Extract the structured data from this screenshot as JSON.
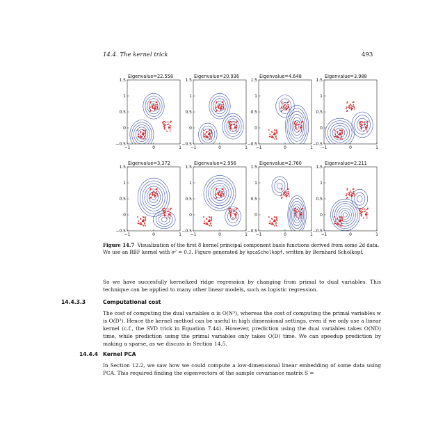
{
  "header": {
    "running_title": "14.4.  The kernel trick",
    "page_number": "493"
  },
  "figure": {
    "panels": [
      {
        "title": "Eigenvalue=22.558"
      },
      {
        "title": "Eigenvalue=20.936"
      },
      {
        "title": "Eigenvalue=4.648"
      },
      {
        "title": "Eigenvalue=3.988"
      },
      {
        "title": "Eigenvalue=3.372"
      },
      {
        "title": "Eigenvalue=2.956"
      },
      {
        "title": "Eigenvalue=2.760"
      },
      {
        "title": "Eigenvalue=2.211"
      }
    ],
    "y_ticks": [
      "1.5",
      "1",
      "0.5",
      "0",
      "−0.5"
    ],
    "x_ticks": [
      "−1",
      "0",
      "1"
    ],
    "colors": {
      "contour": "#3a4fa0",
      "points": "#d42020",
      "axes": "#222222"
    }
  },
  "caption": {
    "label": "Figure 14.7",
    "text_1": "Visualization of the first 8 kernel principal component basis functions derived from some 2d data. We use an RBF kernel with ",
    "math": "σ² = 0.1",
    "text_2": ". Figure generated by ",
    "code": "kpcaScholkopf",
    "text_3": ", written by Bernhard Scholkopf."
  },
  "paragraph_1": "So we have succesfully kernelized ridge regression by changing from primal to dual variables. This technique can be applied to many other linear models, such as logistic regression.",
  "section_1": {
    "number": "14.4.3.3",
    "title": "Computational cost",
    "body": "The cost of computing the dual variables α is O(N³), whereas the cost of computing the primal variables w is O(D³). Hence the kernel method can be useful in high dimensional settings, even if we only use a linear kernel (c.f., the SVD trick in Equation 7.44). However, prediction using the dual variables takes O(ND) time, while prediction using the primal variables only takes O(D) time. We can speedup prediction by making α sparse, as we discuss in Section 14.5."
  },
  "section_2": {
    "number": "14.4.4",
    "title": "Kernel PCA",
    "body": "In Section 12.2, we saw how we could compute a low-dimensional linear embedding of some data using PCA. This required finding the eigenvectors of the sample covariance matrix S ="
  }
}
